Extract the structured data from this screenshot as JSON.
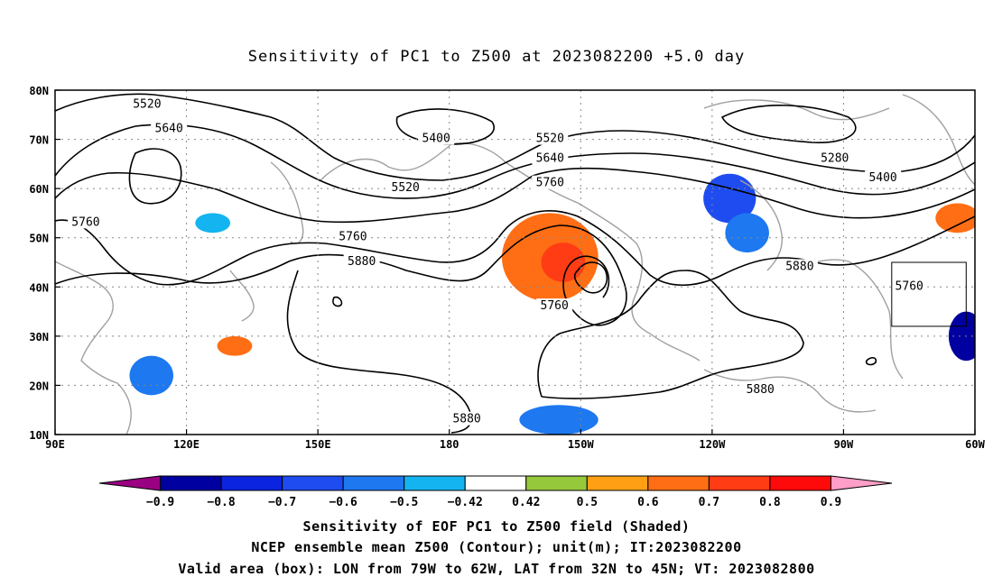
{
  "title": "Sensitivity of PC1 to Z500 at 2023082200 +5.0 day",
  "map": {
    "lon_range": [
      90,
      300
    ],
    "lat_range": [
      10,
      80
    ],
    "x_ticks": [
      {
        "lon": 90,
        "label": "90E"
      },
      {
        "lon": 120,
        "label": "120E"
      },
      {
        "lon": 150,
        "label": "150E"
      },
      {
        "lon": 180,
        "label": "180"
      },
      {
        "lon": 210,
        "label": "150W"
      },
      {
        "lon": 240,
        "label": "120W"
      },
      {
        "lon": 270,
        "label": "90W"
      },
      {
        "lon": 300,
        "label": "60W"
      }
    ],
    "y_ticks": [
      {
        "lat": 80,
        "label": "80N"
      },
      {
        "lat": 70,
        "label": "70N"
      },
      {
        "lat": 60,
        "label": "60N"
      },
      {
        "lat": 50,
        "label": "50N"
      },
      {
        "lat": 40,
        "label": "40N"
      },
      {
        "lat": 30,
        "label": "30N"
      },
      {
        "lat": 20,
        "label": "20N"
      },
      {
        "lat": 10,
        "label": "10N"
      }
    ],
    "contour_labels": [
      {
        "text": "5520",
        "lon": 111,
        "lat": 77
      },
      {
        "text": "5640",
        "lon": 116,
        "lat": 72
      },
      {
        "text": "5400",
        "lon": 177,
        "lat": 70
      },
      {
        "text": "5520",
        "lon": 170,
        "lat": 60
      },
      {
        "text": "5520",
        "lon": 203,
        "lat": 70
      },
      {
        "text": "5640",
        "lon": 203,
        "lat": 66
      },
      {
        "text": "5760",
        "lon": 203,
        "lat": 61
      },
      {
        "text": "5280",
        "lon": 268,
        "lat": 66
      },
      {
        "text": "5400",
        "lon": 279,
        "lat": 62
      },
      {
        "text": "5760",
        "lon": 97,
        "lat": 53
      },
      {
        "text": "5760",
        "lon": 158,
        "lat": 50
      },
      {
        "text": "5880",
        "lon": 160,
        "lat": 45
      },
      {
        "text": "5760",
        "lon": 204,
        "lat": 36
      },
      {
        "text": "5880",
        "lon": 260,
        "lat": 44
      },
      {
        "text": "5760",
        "lon": 285,
        "lat": 40
      },
      {
        "text": "5880",
        "lon": 251,
        "lat": 19
      },
      {
        "text": "5880",
        "lon": 184,
        "lat": 13
      }
    ],
    "valid_box": {
      "lon_min": 281,
      "lon_max": 298,
      "lat_min": 32,
      "lat_max": 45
    },
    "shaded_regions": [
      {
        "lon": 203,
        "lat": 46,
        "rx": 11,
        "ry": 9,
        "value": 0.6
      },
      {
        "lon": 206,
        "lat": 45,
        "rx": 5,
        "ry": 4,
        "value": 0.7
      },
      {
        "lon": 296,
        "lat": 54,
        "rx": 5,
        "ry": 3,
        "value": 0.6
      },
      {
        "lon": 131,
        "lat": 28,
        "rx": 4,
        "ry": 2,
        "value": 0.6
      },
      {
        "lon": 112,
        "lat": 22,
        "rx": 5,
        "ry": 4,
        "value": -0.6
      },
      {
        "lon": 244,
        "lat": 58,
        "rx": 6,
        "ry": 5,
        "value": -0.7
      },
      {
        "lon": 248,
        "lat": 51,
        "rx": 5,
        "ry": 4,
        "value": -0.6
      },
      {
        "lon": 298,
        "lat": 30,
        "rx": 4,
        "ry": 5,
        "value": -0.9
      },
      {
        "lon": 205,
        "lat": 13,
        "rx": 9,
        "ry": 3,
        "value": -0.6
      },
      {
        "lon": 126,
        "lat": 53,
        "rx": 4,
        "ry": 2,
        "value": -0.5
      }
    ]
  },
  "colorbar": {
    "colors": [
      "#9a0082",
      "#0000a0",
      "#0a24e0",
      "#1e4cf0",
      "#1e78f0",
      "#14b4f0",
      "#ffffff",
      "#96c83c",
      "#ffa014",
      "#ff6e14",
      "#ff3c14",
      "#ff0a0a",
      "#ff9ec8"
    ],
    "labels": [
      "−0.9",
      "−0.8",
      "−0.7",
      "−0.6",
      "−0.5",
      "−0.42",
      "0.42",
      "0.5",
      "0.6",
      "0.7",
      "0.8",
      "0.9"
    ]
  },
  "caption": {
    "line1": "Sensitivity of EOF PC1 to Z500 field (Shaded)",
    "line2": "NCEP ensemble mean Z500 (Contour); unit(m); IT:2023082200",
    "line3": "Valid area (box): LON from 79W to 62W, LAT from 32N to 45N; VT: 2023082800"
  }
}
